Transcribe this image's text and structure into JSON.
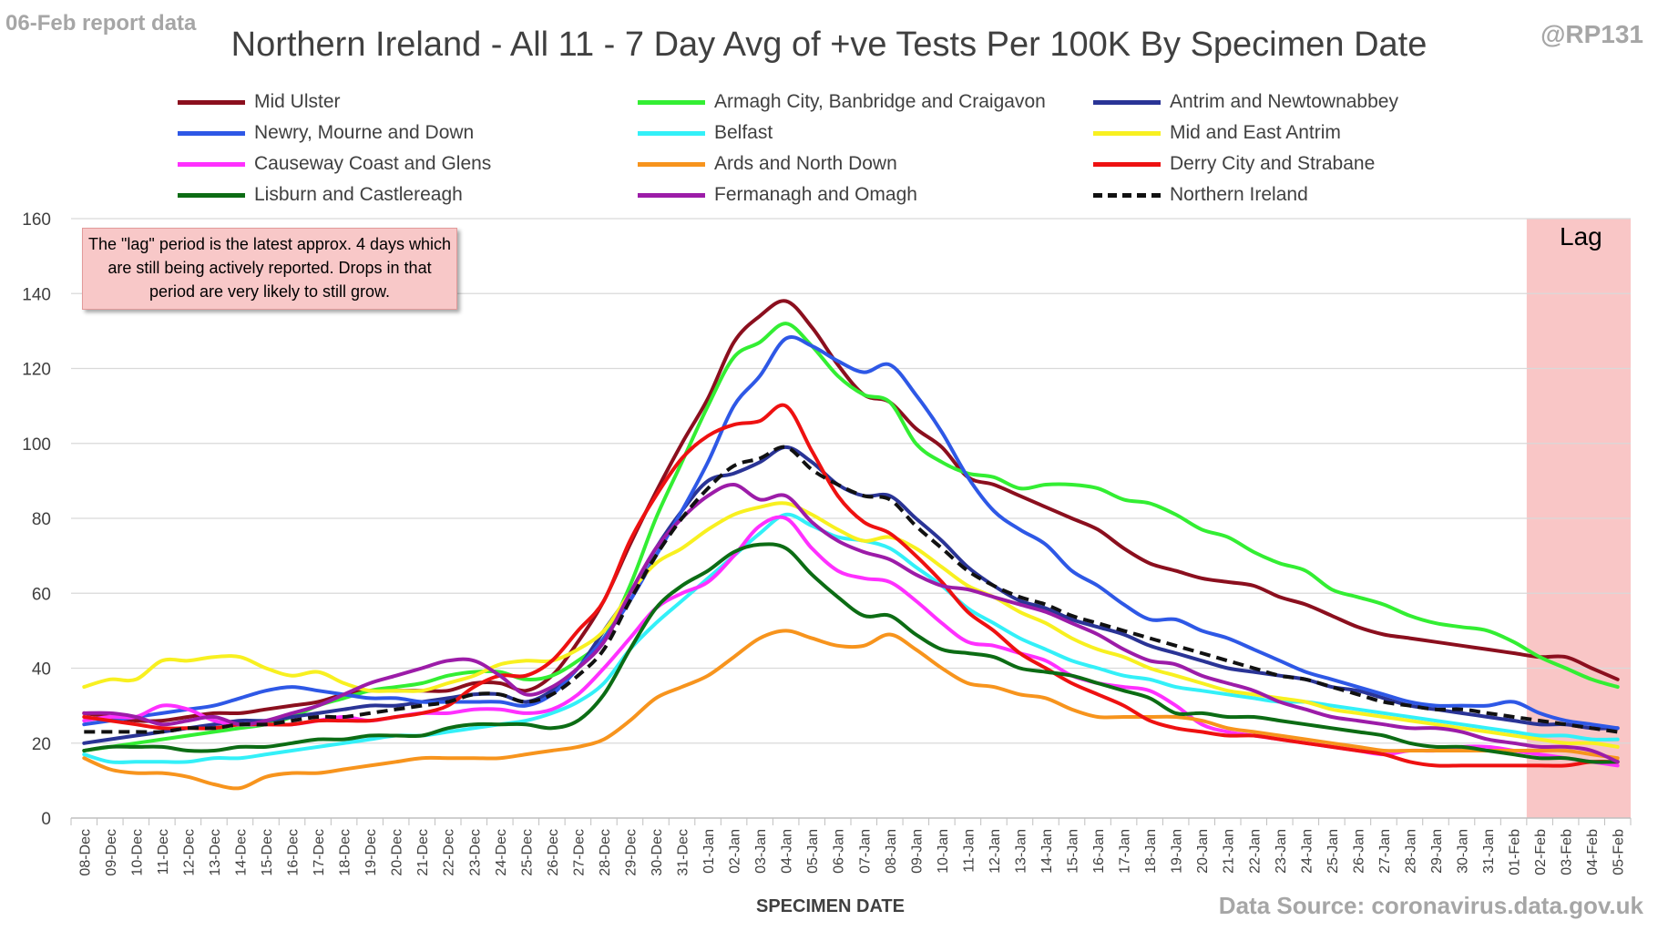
{
  "header": {
    "report_label": "06-Feb report data",
    "title": "Northern Ireland - All 11 - 7 Day Avg of +ve Tests Per 100K By Specimen Date",
    "handle": "@RP131"
  },
  "footer": {
    "source": "Data Source: coronavirus.data.gov.uk"
  },
  "annotation": {
    "note": "The \"lag\" period is the latest approx. 4 days which are still being actively reported.  Drops in that period are very likely to still grow.",
    "lag_label": "Lag"
  },
  "chart_data": {
    "type": "line",
    "title": "Northern Ireland - All 11 - 7 Day Avg of +ve Tests Per 100K By Specimen Date",
    "xlabel": "SPECIMEN DATE",
    "ylabel": "",
    "ylim": [
      0,
      160
    ],
    "yticks": [
      0,
      20,
      40,
      60,
      80,
      100,
      120,
      140,
      160
    ],
    "grid": true,
    "legend_position": "top",
    "lag_region": {
      "from": "02-Feb",
      "to": "05-Feb",
      "color": "#f8c0c0"
    },
    "x": [
      "08-Dec",
      "09-Dec",
      "10-Dec",
      "11-Dec",
      "12-Dec",
      "13-Dec",
      "14-Dec",
      "15-Dec",
      "16-Dec",
      "17-Dec",
      "18-Dec",
      "19-Dec",
      "20-Dec",
      "21-Dec",
      "22-Dec",
      "23-Dec",
      "24-Dec",
      "25-Dec",
      "26-Dec",
      "27-Dec",
      "28-Dec",
      "29-Dec",
      "30-Dec",
      "31-Dec",
      "01-Jan",
      "02-Jan",
      "03-Jan",
      "04-Jan",
      "05-Jan",
      "06-Jan",
      "07-Jan",
      "08-Jan",
      "09-Jan",
      "10-Jan",
      "11-Jan",
      "12-Jan",
      "13-Jan",
      "14-Jan",
      "15-Jan",
      "16-Jan",
      "17-Jan",
      "18-Jan",
      "19-Jan",
      "20-Jan",
      "21-Jan",
      "22-Jan",
      "23-Jan",
      "24-Jan",
      "25-Jan",
      "26-Jan",
      "27-Jan",
      "28-Jan",
      "29-Jan",
      "30-Jan",
      "31-Jan",
      "01-Feb",
      "02-Feb",
      "03-Feb",
      "04-Feb",
      "05-Feb"
    ],
    "series": [
      {
        "name": "Mid Ulster",
        "color": "#8b0f1e",
        "dash": false,
        "values": [
          28,
          27,
          26,
          26,
          27,
          28,
          28,
          29,
          30,
          31,
          33,
          34,
          34,
          34,
          34,
          36,
          36,
          34,
          38,
          47,
          58,
          73,
          87,
          100,
          112,
          127,
          134,
          138,
          131,
          121,
          113,
          111,
          104,
          99,
          91,
          89,
          86,
          83,
          80,
          77,
          72,
          68,
          66,
          64,
          63,
          62,
          59,
          57,
          54,
          51,
          49,
          48,
          47,
          46,
          45,
          44,
          43,
          43,
          40,
          37
        ]
      },
      {
        "name": "Armagh City, Banbridge and Craigavon",
        "color": "#33ee33",
        "dash": false,
        "values": [
          18,
          19,
          20,
          21,
          22,
          23,
          24,
          25,
          27,
          30,
          32,
          34,
          35,
          36,
          38,
          39,
          39,
          37,
          38,
          42,
          48,
          62,
          80,
          95,
          110,
          123,
          127,
          132,
          126,
          118,
          113,
          111,
          100,
          95,
          92,
          91,
          88,
          89,
          89,
          88,
          85,
          84,
          81,
          77,
          75,
          71,
          68,
          66,
          61,
          59,
          57,
          54,
          52,
          51,
          50,
          47,
          43,
          40,
          37,
          35
        ]
      },
      {
        "name": "Antrim and Newtownabbey",
        "color": "#2a3496",
        "dash": false,
        "values": [
          20,
          21,
          22,
          23,
          24,
          25,
          26,
          26,
          27,
          28,
          29,
          30,
          30,
          31,
          32,
          33,
          33,
          31,
          34,
          40,
          50,
          60,
          72,
          82,
          90,
          92,
          95,
          99,
          95,
          89,
          86,
          86,
          80,
          74,
          67,
          62,
          58,
          56,
          53,
          51,
          49,
          46,
          44,
          42,
          40,
          39,
          38,
          37,
          35,
          34,
          32,
          30,
          29,
          28,
          27,
          26,
          25,
          25,
          24,
          24
        ]
      },
      {
        "name": "Newry, Mourne and Down",
        "color": "#2e58e6",
        "dash": false,
        "values": [
          25,
          26,
          27,
          28,
          29,
          30,
          32,
          34,
          35,
          34,
          33,
          32,
          32,
          31,
          31,
          31,
          31,
          30,
          33,
          40,
          48,
          58,
          70,
          82,
          95,
          110,
          118,
          128,
          126,
          122,
          119,
          121,
          113,
          103,
          91,
          82,
          77,
          73,
          66,
          62,
          57,
          53,
          53,
          50,
          48,
          45,
          42,
          39,
          37,
          35,
          33,
          31,
          30,
          30,
          30,
          31,
          28,
          26,
          25,
          24
        ]
      },
      {
        "name": "Belfast",
        "color": "#33f0f8",
        "dash": false,
        "values": [
          17,
          15,
          15,
          15,
          15,
          16,
          16,
          17,
          18,
          19,
          20,
          21,
          22,
          22,
          23,
          24,
          25,
          26,
          28,
          31,
          36,
          45,
          52,
          58,
          64,
          70,
          76,
          81,
          78,
          75,
          74,
          72,
          67,
          62,
          56,
          52,
          48,
          45,
          42,
          40,
          38,
          37,
          35,
          34,
          33,
          32,
          31,
          31,
          30,
          29,
          28,
          27,
          26,
          25,
          24,
          23,
          22,
          22,
          21,
          21
        ]
      },
      {
        "name": "Mid and East Antrim",
        "color": "#f8f020",
        "dash": false,
        "values": [
          35,
          37,
          37,
          42,
          42,
          43,
          43,
          40,
          38,
          39,
          36,
          34,
          34,
          34,
          36,
          38,
          41,
          42,
          42,
          45,
          50,
          60,
          68,
          72,
          77,
          81,
          83,
          84,
          81,
          77,
          74,
          75,
          72,
          67,
          62,
          59,
          55,
          52,
          48,
          45,
          43,
          40,
          38,
          36,
          34,
          33,
          32,
          31,
          29,
          28,
          27,
          26,
          25,
          24,
          23,
          22,
          21,
          20,
          20,
          19
        ]
      },
      {
        "name": "Causeway Coast and Glens",
        "color": "#ff30ff",
        "dash": false,
        "values": [
          26,
          27,
          27,
          30,
          29,
          26,
          25,
          25,
          25,
          26,
          27,
          26,
          27,
          28,
          28,
          29,
          29,
          28,
          29,
          33,
          40,
          48,
          56,
          60,
          63,
          70,
          78,
          80,
          72,
          66,
          64,
          63,
          58,
          52,
          47,
          46,
          44,
          42,
          38,
          36,
          35,
          34,
          30,
          25,
          23,
          22,
          21,
          20,
          19,
          18,
          17,
          18,
          18,
          19,
          19,
          18,
          17,
          16,
          15,
          14
        ]
      },
      {
        "name": "Ards and North Down",
        "color": "#f7941d",
        "dash": false,
        "values": [
          16,
          13,
          12,
          12,
          11,
          9,
          8,
          11,
          12,
          12,
          13,
          14,
          15,
          16,
          16,
          16,
          16,
          17,
          18,
          19,
          21,
          26,
          32,
          35,
          38,
          43,
          48,
          50,
          48,
          46,
          46,
          49,
          45,
          40,
          36,
          35,
          33,
          32,
          29,
          27,
          27,
          27,
          27,
          26,
          24,
          23,
          22,
          21,
          20,
          19,
          18,
          18,
          18,
          18,
          18,
          18,
          18,
          18,
          17,
          16
        ]
      },
      {
        "name": "Derry City and Strabane",
        "color": "#ee1111",
        "dash": false,
        "values": [
          27,
          26,
          25,
          24,
          24,
          24,
          25,
          25,
          25,
          26,
          26,
          26,
          27,
          28,
          30,
          35,
          38,
          38,
          42,
          50,
          58,
          74,
          86,
          96,
          102,
          105,
          106,
          110,
          98,
          86,
          79,
          76,
          70,
          63,
          55,
          50,
          44,
          40,
          36,
          33,
          30,
          26,
          24,
          23,
          22,
          22,
          21,
          20,
          19,
          18,
          17,
          15,
          14,
          14,
          14,
          14,
          14,
          14,
          15,
          15
        ]
      },
      {
        "name": "Lisburn and Castlereagh",
        "color": "#0c6c14",
        "dash": false,
        "values": [
          18,
          19,
          19,
          19,
          18,
          18,
          19,
          19,
          20,
          21,
          21,
          22,
          22,
          22,
          24,
          25,
          25,
          25,
          24,
          26,
          33,
          45,
          56,
          62,
          66,
          71,
          73,
          72,
          65,
          59,
          54,
          54,
          49,
          45,
          44,
          43,
          40,
          39,
          38,
          36,
          34,
          32,
          28,
          28,
          27,
          27,
          26,
          25,
          24,
          23,
          22,
          20,
          19,
          19,
          18,
          17,
          16,
          16,
          15,
          15
        ]
      },
      {
        "name": "Fermanagh and Omagh",
        "color": "#9c1ca8",
        "dash": false,
        "values": [
          28,
          28,
          27,
          25,
          26,
          27,
          25,
          26,
          28,
          30,
          33,
          36,
          38,
          40,
          42,
          42,
          38,
          33,
          35,
          40,
          47,
          60,
          72,
          80,
          86,
          89,
          85,
          86,
          79,
          74,
          71,
          69,
          65,
          62,
          61,
          59,
          57,
          55,
          52,
          49,
          45,
          42,
          41,
          38,
          36,
          34,
          31,
          29,
          27,
          26,
          25,
          24,
          24,
          23,
          21,
          20,
          19,
          19,
          18,
          15
        ]
      },
      {
        "name": "Northern Ireland",
        "color": "#111111",
        "dash": true,
        "values": [
          23,
          23,
          23,
          23,
          24,
          24,
          25,
          25,
          26,
          27,
          27,
          28,
          29,
          30,
          31,
          33,
          33,
          31,
          33,
          38,
          45,
          58,
          70,
          80,
          88,
          94,
          96,
          99,
          93,
          89,
          86,
          85,
          78,
          72,
          66,
          62,
          59,
          57,
          54,
          52,
          50,
          48,
          46,
          44,
          42,
          40,
          38,
          37,
          35,
          33,
          31,
          30,
          29,
          29,
          28,
          27,
          26,
          25,
          24,
          23
        ]
      }
    ]
  }
}
